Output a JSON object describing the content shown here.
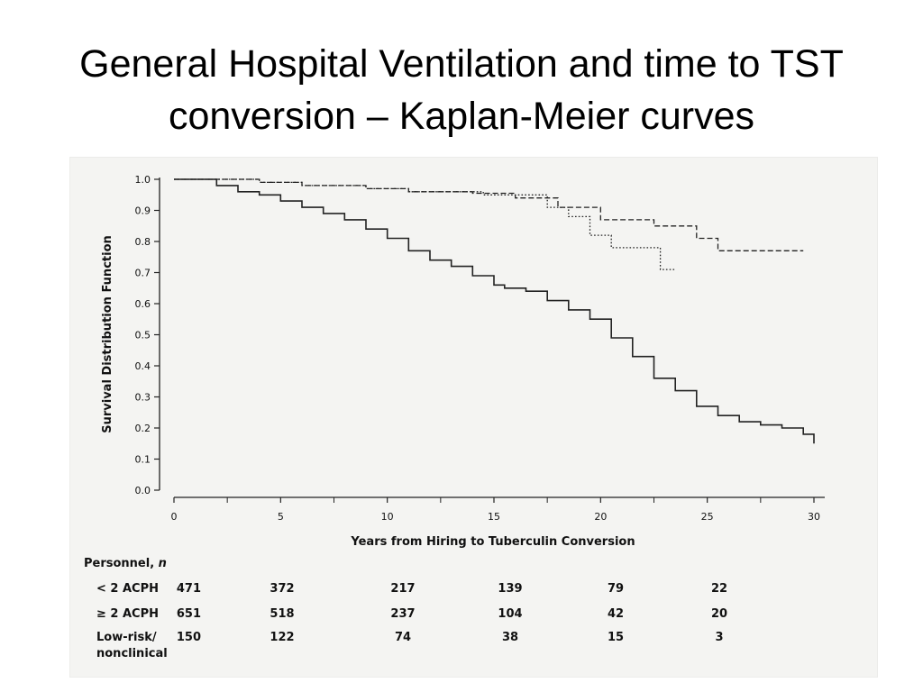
{
  "slide": {
    "title_line1": "General Hospital Ventilation and time to TST",
    "title_line2": "conversion – Kaplan-Meier curves"
  },
  "chart_data": {
    "type": "line",
    "step": true,
    "xlabel": "Years from Hiring to Tuberculin Conversion",
    "ylabel": "Survival Distribution Function",
    "xlim": [
      0,
      30
    ],
    "ylim": [
      0,
      1.0
    ],
    "xticks": [
      0,
      5,
      10,
      15,
      20,
      25,
      30
    ],
    "xtick_labels": [
      "0",
      "5",
      "10",
      "15",
      "20",
      "25",
      "30"
    ],
    "yticks": [
      0.0,
      0.1,
      0.2,
      0.3,
      0.4,
      0.5,
      0.6,
      0.7,
      0.8,
      0.9,
      1.0
    ],
    "ytick_labels": [
      "0.0",
      "0.1",
      "0.2",
      "0.3",
      "0.4",
      "0.5",
      "0.6",
      "0.7",
      "0.8",
      "0.9",
      "1.0"
    ],
    "grid": false,
    "series": [
      {
        "style": "solid",
        "x": [
          0,
          2,
          3,
          4,
          5,
          6,
          7,
          8,
          9,
          10,
          11,
          12,
          13,
          14,
          15,
          15.5,
          16.5,
          17.5,
          18.5,
          19.5,
          20.5,
          21.5,
          22.5,
          23.5,
          24.5,
          25.5,
          26.5,
          27.5,
          28.5,
          29.5,
          30
        ],
        "y": [
          1.0,
          0.98,
          0.96,
          0.95,
          0.93,
          0.91,
          0.89,
          0.87,
          0.84,
          0.81,
          0.77,
          0.74,
          0.72,
          0.69,
          0.66,
          0.65,
          0.64,
          0.61,
          0.58,
          0.55,
          0.49,
          0.43,
          0.36,
          0.32,
          0.27,
          0.24,
          0.22,
          0.21,
          0.2,
          0.18,
          0.15
        ]
      },
      {
        "style": "dashed",
        "x": [
          0,
          4,
          6,
          9,
          11,
          14,
          16,
          18,
          20,
          22.5,
          24.5,
          25.5,
          29.5
        ],
        "y": [
          1.0,
          0.99,
          0.98,
          0.97,
          0.96,
          0.955,
          0.94,
          0.91,
          0.87,
          0.85,
          0.81,
          0.77,
          0.77
        ]
      },
      {
        "style": "dotted",
        "x": [
          0,
          4,
          6,
          9,
          11,
          14.5,
          17.5,
          18.5,
          19.5,
          20.5,
          22.8,
          23.5
        ],
        "y": [
          1.0,
          0.99,
          0.98,
          0.97,
          0.96,
          0.95,
          0.91,
          0.88,
          0.82,
          0.78,
          0.71,
          0.71
        ]
      }
    ],
    "risk_table": {
      "header": "Personnel, n",
      "times": [
        0,
        5,
        10,
        15,
        20,
        25
      ],
      "rows": [
        {
          "label_lines": [
            "< 2 ACPH"
          ],
          "counts": [
            "471",
            "372",
            "217",
            "139",
            "79",
            "22"
          ]
        },
        {
          "label_lines": [
            "≥ 2 ACPH"
          ],
          "counts": [
            "651",
            "518",
            "237",
            "104",
            "42",
            "20"
          ]
        },
        {
          "label_lines": [
            "Low-risk/",
            "nonclinical"
          ],
          "counts": [
            "150",
            "122",
            "74",
            "38",
            "15",
            "3"
          ]
        }
      ]
    }
  }
}
